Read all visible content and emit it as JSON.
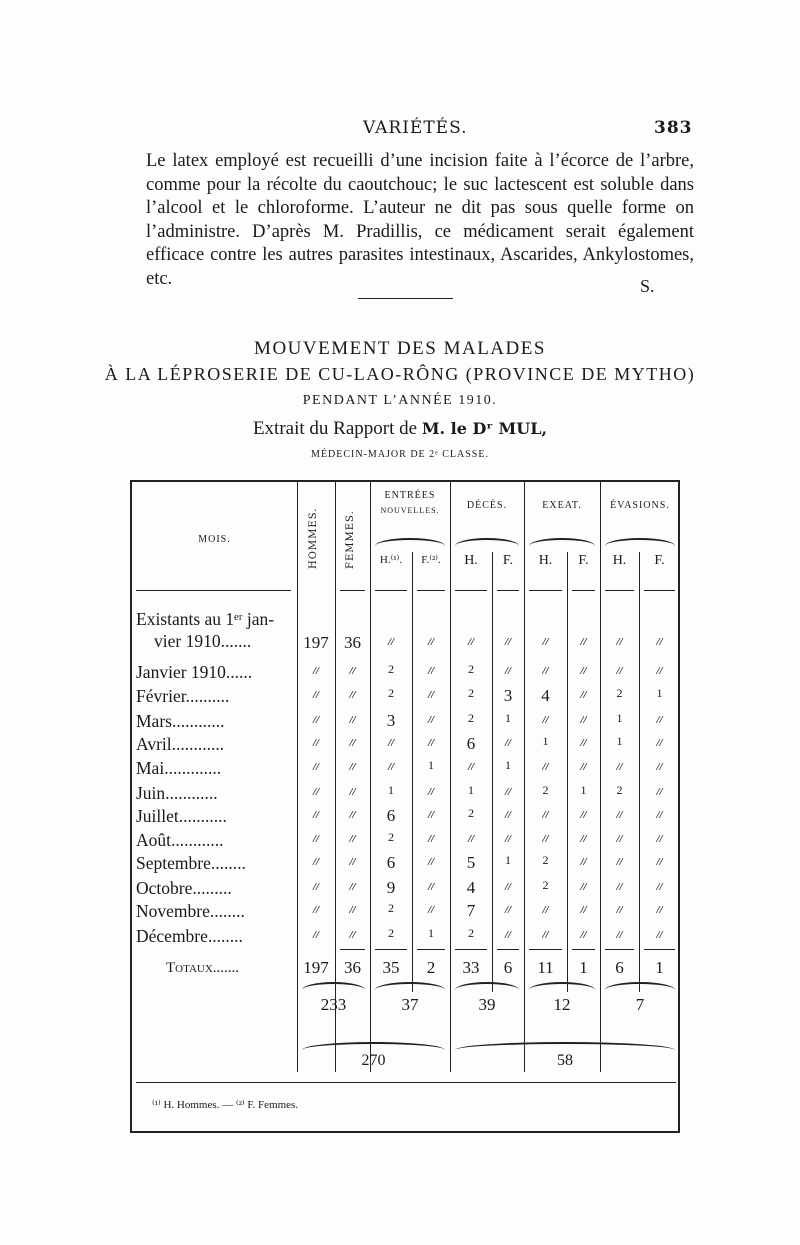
{
  "header": {
    "running_title": "VARIÉTÉS.",
    "page_number": "383"
  },
  "intro": {
    "paragraph": "Le latex employé est recueilli d’une incision faite à l’écorce de l’arbre, comme pour la récolte du caoutchouc; le suc lactescent est soluble dans l’alcool et le chloroforme. L’auteur ne dit pas sous quelle forme on l’administre. D’après M. Pradillis, ce médicament serait également efficace contre les autres parasites intestinaux, Ascarides, Ankylostomes, etc.",
    "signature": "S."
  },
  "title": {
    "line1": "MOUVEMENT DES MALADES",
    "line2": "À LA LÉPROSERIE DE CU-LAO-RÔNG (PROVINCE DE MYTHO)",
    "line3": "PENDANT L’ANNÉE 1910.",
    "line4_prefix": "Extrait du Rapport de ",
    "line4_author": "M. le Dʳ MUL,",
    "line5": "MÉDECIN-MAJOR DE 2ᵉ CLASSE."
  },
  "table": {
    "headers": {
      "mois": "MOIS.",
      "hommes": "HOMMES.",
      "femmes": "FEMMES.",
      "entrees": "ENTRÉES",
      "entrees_sub": "NOUVELLES.",
      "deces": "DÉCÈS.",
      "exeat": "EXEAT.",
      "evasions": "ÉVASIONS.",
      "h": "H.",
      "f": "F.",
      "h_note": "H.⁽¹⁾.",
      "f_note": "F.⁽²⁾."
    },
    "rows": [
      {
        "label": "Existants au 1ᵉʳ jan-",
        "label2": "vier 1910.......",
        "values": [
          "197",
          "36",
          "//",
          "//",
          "//",
          "//",
          "//",
          "//",
          "//",
          "//"
        ]
      },
      {
        "label": "Janvier 1910......",
        "values": [
          "//",
          "//",
          "2",
          "//",
          "2",
          "//",
          "//",
          "//",
          "//",
          "//"
        ]
      },
      {
        "label": "Février..........",
        "values": [
          "//",
          "//",
          "2",
          "//",
          "2",
          "3",
          "4",
          "//",
          "2",
          "1"
        ]
      },
      {
        "label": "Mars............",
        "values": [
          "//",
          "//",
          "3",
          "//",
          "2",
          "1",
          "//",
          "//",
          "1",
          "//"
        ]
      },
      {
        "label": "Avril............",
        "values": [
          "//",
          "//",
          "//",
          "//",
          "6",
          "//",
          "1",
          "//",
          "1",
          "//"
        ]
      },
      {
        "label": "Mai.............",
        "values": [
          "//",
          "//",
          "//",
          "1",
          "//",
          "1",
          "//",
          "//",
          "//",
          "//"
        ]
      },
      {
        "label": "Juin............",
        "values": [
          "//",
          "//",
          "1",
          "//",
          "1",
          "//",
          "2",
          "1",
          "2",
          "//"
        ]
      },
      {
        "label": "Juillet...........",
        "values": [
          "//",
          "//",
          "6",
          "//",
          "2",
          "//",
          "//",
          "//",
          "//",
          "//"
        ]
      },
      {
        "label": "Août............",
        "values": [
          "//",
          "//",
          "2",
          "//",
          "//",
          "//",
          "//",
          "//",
          "//",
          "//"
        ]
      },
      {
        "label": "Septembre........",
        "values": [
          "//",
          "//",
          "6",
          "//",
          "5",
          "1",
          "2",
          "//",
          "//",
          "//"
        ]
      },
      {
        "label": "Octobre.........",
        "values": [
          "//",
          "//",
          "9",
          "//",
          "4",
          "//",
          "2",
          "//",
          "//",
          "//"
        ]
      },
      {
        "label": "Novembre........",
        "values": [
          "//",
          "//",
          "2",
          "//",
          "7",
          "//",
          "//",
          "//",
          "//",
          "//"
        ]
      },
      {
        "label": "Décembre........",
        "values": [
          "//",
          "//",
          "2",
          "1",
          "2",
          "//",
          "//",
          "//",
          "//",
          "//"
        ]
      }
    ],
    "totals": {
      "label": "Totaux.......",
      "values": [
        "197",
        "36",
        "35",
        "2",
        "33",
        "6",
        "11",
        "1",
        "6",
        "1"
      ]
    },
    "subtotals": [
      "233",
      "37",
      "39",
      "12",
      "7"
    ],
    "grand_totals": [
      "270",
      "58"
    ],
    "footnote": "⁽¹⁾ H. Hommes. — ⁽²⁾ F. Femmes."
  }
}
